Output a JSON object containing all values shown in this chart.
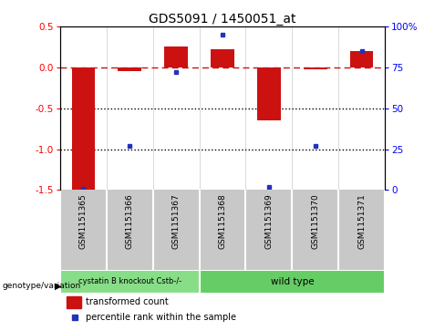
{
  "title": "GDS5091 / 1450051_at",
  "samples": [
    "GSM1151365",
    "GSM1151366",
    "GSM1151367",
    "GSM1151368",
    "GSM1151369",
    "GSM1151370",
    "GSM1151371"
  ],
  "transformed_count": [
    -1.5,
    -0.05,
    0.25,
    0.22,
    -0.65,
    -0.02,
    0.2
  ],
  "percentile_rank": [
    1,
    27,
    72,
    95,
    2,
    27,
    85
  ],
  "ylim_left": [
    -1.5,
    0.5
  ],
  "ylim_right": [
    0,
    100
  ],
  "bar_color": "#cc1111",
  "dot_color": "#2233bb",
  "dashed_line_color": "#cc1111",
  "dotted_line_color": "#000000",
  "group1_count": 3,
  "group1_label": "cystatin B knockout Cstb-/-",
  "group1_color": "#88dd88",
  "group2_label": "wild type",
  "group2_color": "#66cc66",
  "legend_bar_label": "transformed count",
  "legend_dot_label": "percentile rank within the sample",
  "genotype_label": "genotype/variation",
  "left_ticks": [
    0.5,
    0.0,
    -0.5,
    -1.0,
    -1.5
  ],
  "right_ticks": [
    100,
    75,
    50,
    25,
    0
  ],
  "sample_bg_color": "#c8c8c8",
  "plot_bg_color": "#ffffff"
}
